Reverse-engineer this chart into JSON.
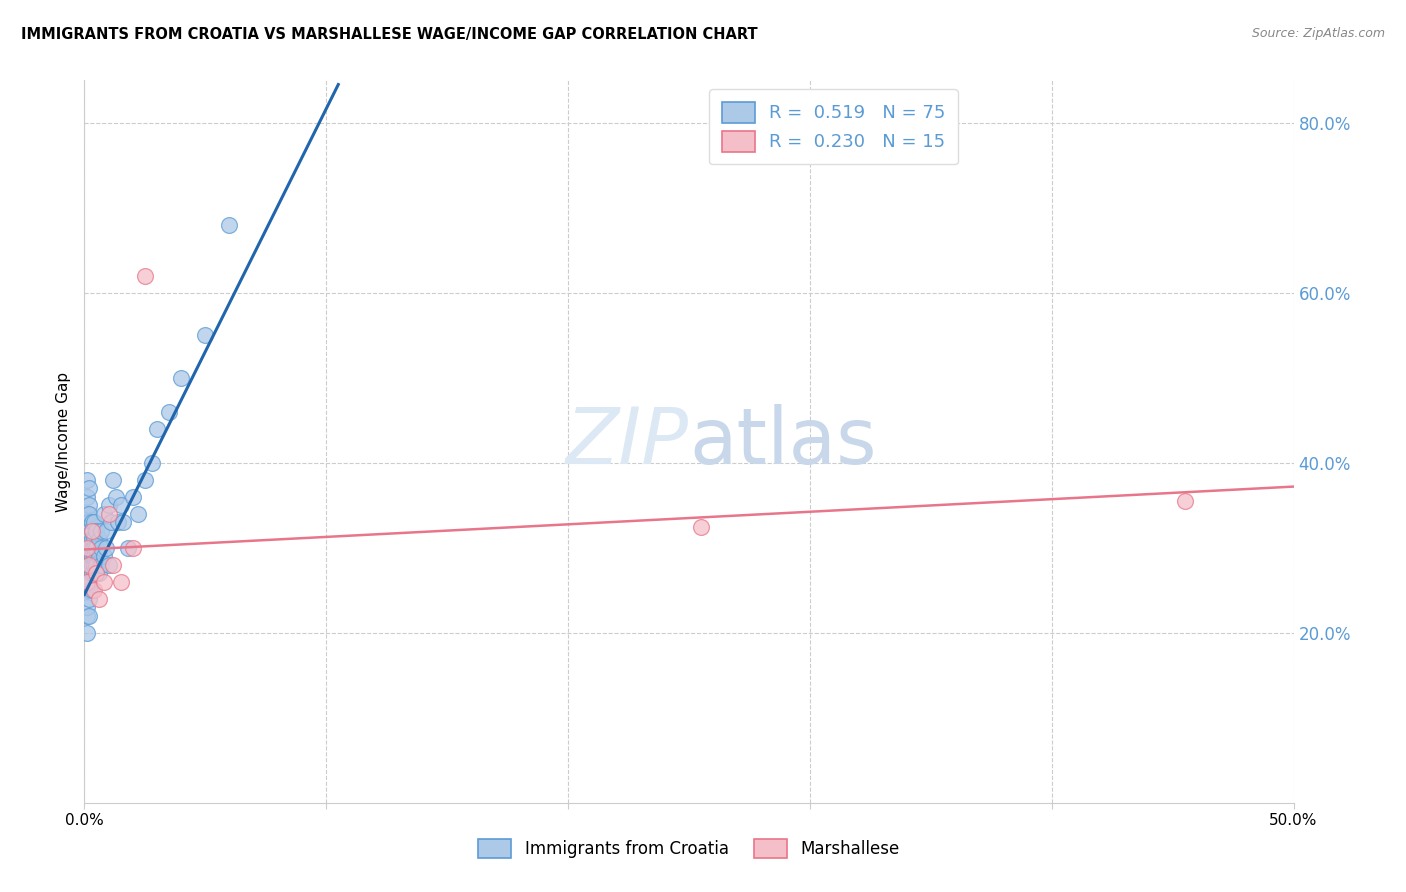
{
  "title": "IMMIGRANTS FROM CROATIA VS MARSHALLESE WAGE/INCOME GAP CORRELATION CHART",
  "source": "Source: ZipAtlas.com",
  "ylabel": "Wage/Income Gap",
  "xlim": [
    0.0,
    0.5
  ],
  "ylim": [
    0.0,
    0.85
  ],
  "ytick_vals": [
    0.2,
    0.4,
    0.6,
    0.8
  ],
  "ytick_labels": [
    "20.0%",
    "40.0%",
    "60.0%",
    "80.0%"
  ],
  "xtick_vals": [
    0.0,
    0.1,
    0.2,
    0.3,
    0.4,
    0.5
  ],
  "xtick_labels": [
    "0.0%",
    "",
    "",
    "",
    "",
    "50.0%"
  ],
  "blue_color": "#5b9bd5",
  "pink_color": "#e8768a",
  "blue_face": "#adc9e8",
  "pink_face": "#f5bfc9",
  "blue_line_color": "#2166ac",
  "pink_line_color": "#e8768a",
  "legend_text_color": "#333333",
  "legend_val_color": "#5b9bd5",
  "watermark_color": "#dce9f5",
  "blue_r": "0.519",
  "blue_n": "75",
  "pink_r": "0.230",
  "pink_n": "15",
  "legend_label_blue": "Immigrants from Croatia",
  "legend_label_pink": "Marshallese",
  "blue_line_x": [
    0.0,
    0.105
  ],
  "blue_line_y": [
    0.245,
    0.845
  ],
  "pink_line_x": [
    0.0,
    0.5
  ],
  "pink_line_y": [
    0.298,
    0.372
  ],
  "blue_x": [
    0.001,
    0.001,
    0.001,
    0.001,
    0.001,
    0.001,
    0.001,
    0.001,
    0.001,
    0.001,
    0.001,
    0.001,
    0.001,
    0.001,
    0.001,
    0.002,
    0.002,
    0.002,
    0.002,
    0.002,
    0.002,
    0.002,
    0.002,
    0.002,
    0.002,
    0.002,
    0.002,
    0.002,
    0.002,
    0.003,
    0.003,
    0.003,
    0.003,
    0.003,
    0.003,
    0.003,
    0.003,
    0.004,
    0.004,
    0.004,
    0.004,
    0.004,
    0.004,
    0.005,
    0.005,
    0.005,
    0.005,
    0.006,
    0.006,
    0.006,
    0.007,
    0.007,
    0.007,
    0.008,
    0.008,
    0.009,
    0.009,
    0.01,
    0.01,
    0.011,
    0.012,
    0.013,
    0.014,
    0.015,
    0.016,
    0.018,
    0.02,
    0.022,
    0.025,
    0.028,
    0.03,
    0.035,
    0.04,
    0.05,
    0.06
  ],
  "blue_y": [
    0.3,
    0.32,
    0.34,
    0.29,
    0.27,
    0.31,
    0.25,
    0.28,
    0.33,
    0.26,
    0.22,
    0.2,
    0.23,
    0.36,
    0.38,
    0.29,
    0.31,
    0.33,
    0.27,
    0.35,
    0.25,
    0.28,
    0.3,
    0.32,
    0.24,
    0.22,
    0.26,
    0.37,
    0.34,
    0.3,
    0.32,
    0.28,
    0.27,
    0.31,
    0.29,
    0.25,
    0.33,
    0.31,
    0.29,
    0.27,
    0.33,
    0.28,
    0.3,
    0.32,
    0.3,
    0.27,
    0.28,
    0.31,
    0.29,
    0.27,
    0.32,
    0.3,
    0.28,
    0.34,
    0.29,
    0.32,
    0.3,
    0.35,
    0.28,
    0.33,
    0.38,
    0.36,
    0.33,
    0.35,
    0.33,
    0.3,
    0.36,
    0.34,
    0.38,
    0.4,
    0.44,
    0.46,
    0.5,
    0.55,
    0.68
  ],
  "pink_x": [
    0.001,
    0.001,
    0.002,
    0.003,
    0.004,
    0.005,
    0.006,
    0.008,
    0.01,
    0.012,
    0.015,
    0.02,
    0.025,
    0.255,
    0.455
  ],
  "pink_y": [
    0.3,
    0.26,
    0.28,
    0.32,
    0.25,
    0.27,
    0.24,
    0.26,
    0.34,
    0.28,
    0.26,
    0.3,
    0.62,
    0.325,
    0.355
  ]
}
